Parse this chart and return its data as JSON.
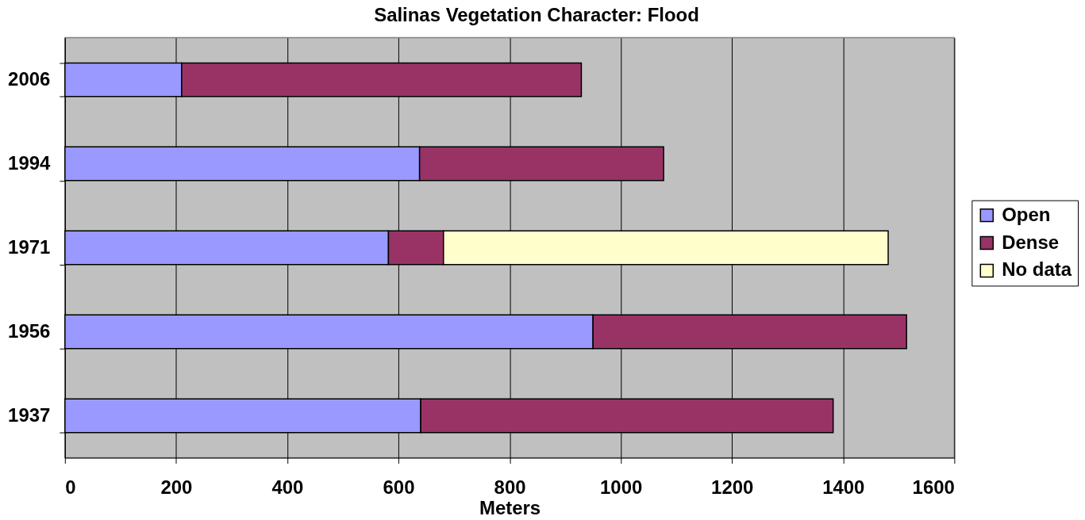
{
  "chart_data": {
    "type": "bar",
    "orientation": "horizontal",
    "stacked": true,
    "title": "Salinas Vegetation Character: Flood",
    "xlabel": "Meters",
    "categories": [
      "2006",
      "1994",
      "1971",
      "1956",
      "1937"
    ],
    "series": [
      {
        "name": "Open",
        "color": "#9999ff",
        "values": [
          210,
          638,
          582,
          950,
          640
        ]
      },
      {
        "name": "Dense",
        "color": "#993366",
        "values": [
          719,
          439,
          99,
          564,
          742
        ]
      },
      {
        "name": "No data",
        "color": "#ffffcc",
        "values": [
          null,
          null,
          800,
          null,
          null
        ]
      }
    ],
    "xlim": [
      0,
      1600
    ],
    "xticks": [
      0,
      200,
      400,
      600,
      800,
      1000,
      1200,
      1400,
      1600
    ],
    "grid": "x",
    "legend": "right"
  }
}
